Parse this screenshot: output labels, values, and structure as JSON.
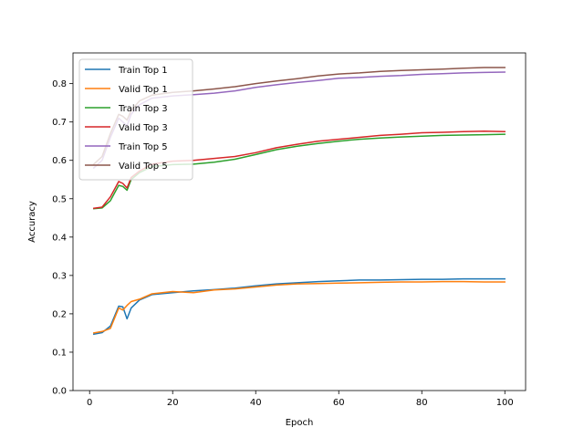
{
  "chart_data": {
    "type": "line",
    "title": "",
    "xlabel": "Epoch",
    "ylabel": "Accuracy",
    "xlim": [
      -4,
      105
    ],
    "ylim": [
      0.0,
      0.88
    ],
    "xticks": [
      0,
      20,
      40,
      60,
      80,
      100
    ],
    "xtick_labels": [
      "0",
      "20",
      "40",
      "60",
      "80",
      "100"
    ],
    "yticks": [
      0.0,
      0.1,
      0.2,
      0.3,
      0.4,
      0.5,
      0.6,
      0.7,
      0.8
    ],
    "ytick_labels": [
      "0.0",
      "0.1",
      "0.2",
      "0.3",
      "0.4",
      "0.5",
      "0.6",
      "0.7",
      "0.8"
    ],
    "grid": false,
    "legend_position": "top-left",
    "series": [
      {
        "name": "Train Top 1",
        "color": "#1f77b4",
        "x": [
          1,
          3,
          5,
          7,
          8,
          9,
          10,
          12,
          15,
          20,
          25,
          30,
          35,
          40,
          45,
          50,
          55,
          60,
          65,
          70,
          75,
          80,
          85,
          90,
          95,
          100
        ],
        "y": [
          0.147,
          0.151,
          0.168,
          0.22,
          0.218,
          0.187,
          0.215,
          0.236,
          0.25,
          0.255,
          0.26,
          0.263,
          0.267,
          0.273,
          0.278,
          0.281,
          0.284,
          0.286,
          0.288,
          0.288,
          0.289,
          0.29,
          0.29,
          0.291,
          0.291,
          0.291
        ]
      },
      {
        "name": "Valid Top 1",
        "color": "#ff7f0e",
        "x": [
          1,
          3,
          5,
          7,
          8,
          9,
          10,
          12,
          15,
          20,
          25,
          30,
          35,
          40,
          45,
          50,
          55,
          60,
          65,
          70,
          75,
          80,
          85,
          90,
          95,
          100
        ],
        "y": [
          0.15,
          0.154,
          0.162,
          0.215,
          0.21,
          0.222,
          0.232,
          0.238,
          0.252,
          0.258,
          0.255,
          0.262,
          0.265,
          0.27,
          0.275,
          0.278,
          0.279,
          0.28,
          0.281,
          0.282,
          0.283,
          0.283,
          0.284,
          0.284,
          0.283,
          0.283
        ]
      },
      {
        "name": "Train Top 3",
        "color": "#2ca02c",
        "x": [
          1,
          3,
          5,
          7,
          8,
          9,
          10,
          12,
          15,
          20,
          25,
          30,
          35,
          40,
          45,
          50,
          55,
          60,
          65,
          70,
          75,
          80,
          85,
          90,
          95,
          100
        ],
        "y": [
          0.474,
          0.476,
          0.495,
          0.535,
          0.532,
          0.522,
          0.55,
          0.568,
          0.584,
          0.589,
          0.59,
          0.595,
          0.603,
          0.615,
          0.628,
          0.637,
          0.644,
          0.65,
          0.655,
          0.658,
          0.661,
          0.663,
          0.665,
          0.666,
          0.667,
          0.668
        ]
      },
      {
        "name": "Valid Top 3",
        "color": "#d62728",
        "x": [
          1,
          3,
          5,
          7,
          8,
          9,
          10,
          12,
          15,
          20,
          25,
          30,
          35,
          40,
          45,
          50,
          55,
          60,
          65,
          70,
          75,
          80,
          85,
          90,
          95,
          100
        ],
        "y": [
          0.475,
          0.478,
          0.505,
          0.545,
          0.54,
          0.528,
          0.555,
          0.572,
          0.59,
          0.598,
          0.6,
          0.605,
          0.61,
          0.62,
          0.633,
          0.642,
          0.65,
          0.655,
          0.66,
          0.665,
          0.668,
          0.672,
          0.673,
          0.675,
          0.676,
          0.675
        ]
      },
      {
        "name": "Train Top 5",
        "color": "#9467bd",
        "x": [
          1,
          3,
          5,
          7,
          8,
          9,
          10,
          12,
          15,
          20,
          25,
          30,
          35,
          40,
          45,
          50,
          55,
          60,
          65,
          70,
          75,
          80,
          85,
          90,
          95,
          100
        ],
        "y": [
          0.58,
          0.6,
          0.66,
          0.71,
          0.7,
          0.69,
          0.72,
          0.745,
          0.762,
          0.768,
          0.771,
          0.775,
          0.781,
          0.79,
          0.797,
          0.803,
          0.808,
          0.814,
          0.816,
          0.819,
          0.821,
          0.824,
          0.826,
          0.828,
          0.829,
          0.83
        ]
      },
      {
        "name": "Valid Top 5",
        "color": "#8c564b",
        "x": [
          1,
          3,
          5,
          7,
          8,
          9,
          10,
          12,
          15,
          20,
          25,
          30,
          35,
          40,
          45,
          50,
          55,
          60,
          65,
          70,
          75,
          80,
          85,
          90,
          95,
          100
        ],
        "y": [
          0.59,
          0.61,
          0.67,
          0.72,
          0.715,
          0.705,
          0.73,
          0.755,
          0.77,
          0.777,
          0.781,
          0.786,
          0.792,
          0.8,
          0.807,
          0.813,
          0.82,
          0.825,
          0.828,
          0.832,
          0.834,
          0.836,
          0.838,
          0.84,
          0.842,
          0.842
        ]
      }
    ]
  }
}
